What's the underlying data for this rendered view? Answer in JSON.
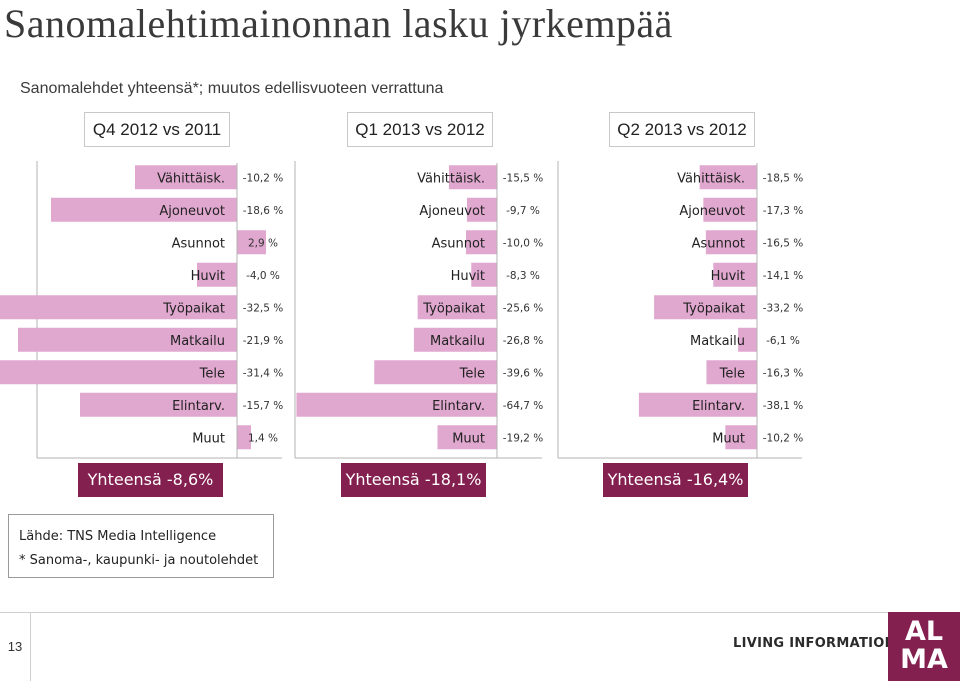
{
  "title": "Sanomalehtimainonnan lasku jyrkempää",
  "subtitle": "Sanomalehdet yhteensä*; muutos edellisvuoteen verrattuna",
  "colors": {
    "bar": "#e0a7cf",
    "accent": "#84204f",
    "axis": "#b3b3b3"
  },
  "chart_data": [
    {
      "type": "bar",
      "title": "Q4 2012 vs 2011",
      "categories": [
        "Vähittäisk.",
        "Ajoneuvot",
        "Asunnot",
        "Huvit",
        "Työpaikat",
        "Matkailu",
        "Tele",
        "Elintarv.",
        "Muut"
      ],
      "values": [
        -10.2,
        -18.6,
        2.9,
        -4.0,
        -32.5,
        -21.9,
        -31.4,
        -15.7,
        1.4
      ],
      "value_labels": [
        "-10,2 %",
        "-18,6 %",
        "2,9 %",
        "-4,0 %",
        "-32,5 %",
        "-21,9 %",
        "-31,4 %",
        "-15,7 %",
        "1,4 %"
      ],
      "total": "Yhteensä -8,6%"
    },
    {
      "type": "bar",
      "title": "Q1 2013 vs 2012",
      "categories": [
        "Vähittäisk.",
        "Ajoneuvot",
        "Asunnot",
        "Huvit",
        "Työpaikat",
        "Matkailu",
        "Tele",
        "Elintarv.",
        "Muut"
      ],
      "values": [
        -15.5,
        -9.7,
        -10.0,
        -8.3,
        -25.6,
        -26.8,
        -39.6,
        -64.7,
        -19.2
      ],
      "value_labels": [
        "-15,5 %",
        "-9,7 %",
        "-10,0 %",
        "-8,3 %",
        "-25,6 %",
        "-26,8 %",
        "-39,6 %",
        "-64,7 %",
        "-19,2 %"
      ],
      "total": "Yhteensä -18,1%"
    },
    {
      "type": "bar",
      "title": "Q2 2013 vs 2012",
      "categories": [
        "Vähittäisk.",
        "Ajoneuvot",
        "Asunnot",
        "Huvit",
        "Työpaikat",
        "Matkailu",
        "Tele",
        "Elintarv.",
        "Muut"
      ],
      "values": [
        -18.5,
        -17.3,
        -16.5,
        -14.1,
        -33.2,
        -6.1,
        -16.3,
        -38.1,
        -10.2
      ],
      "value_labels": [
        "-18,5 %",
        "-17,3 %",
        "-16,5 %",
        "-14,1 %",
        "-33,2 %",
        "-6,1 %",
        "-16,3 %",
        "-38,1 %",
        "-10,2 %"
      ],
      "total": "Yhteensä -16,4%"
    }
  ],
  "source": {
    "line1": "Lähde: TNS Media Intelligence",
    "line2": "* Sanoma-, kaupunki- ja noutolehdet"
  },
  "footer": {
    "page_number": "13",
    "brand": "LIVING INFORMATION",
    "logo_line1": "AL",
    "logo_line2": "MA"
  }
}
